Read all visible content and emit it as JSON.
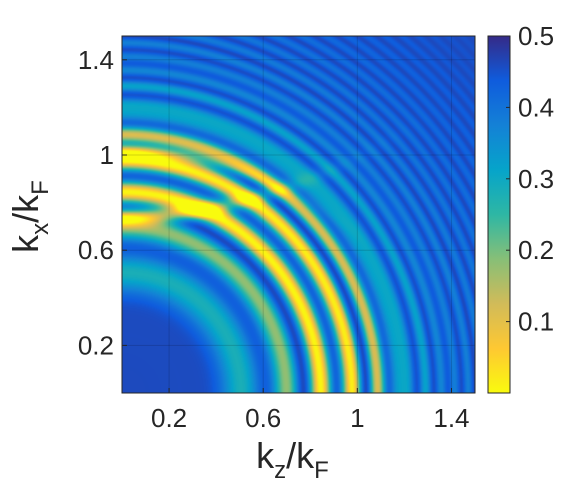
{
  "chart_data": {
    "type": "heatmap",
    "xlabel": {
      "main": "k",
      "sub1": "z",
      "slash": "/k",
      "sub2": "F"
    },
    "ylabel": {
      "main": "k",
      "sub1": "x",
      "slash": "/k",
      "sub2": "F"
    },
    "xlim": [
      0,
      1.5
    ],
    "ylim": [
      0,
      1.5
    ],
    "x_ticks": [
      {
        "value": 0.2,
        "label": "0.2"
      },
      {
        "value": 0.6,
        "label": "0.6"
      },
      {
        "value": 1.0,
        "label": "1"
      },
      {
        "value": 1.4,
        "label": "1.4"
      }
    ],
    "y_ticks": [
      {
        "value": 0.2,
        "label": "0.2"
      },
      {
        "value": 0.6,
        "label": "0.6"
      },
      {
        "value": 1.0,
        "label": "1"
      },
      {
        "value": 1.4,
        "label": "1.4"
      }
    ],
    "colorbar": {
      "range": [
        0,
        0.5
      ],
      "ticks": [
        {
          "value": 0.1,
          "label": "0.1"
        },
        {
          "value": 0.2,
          "label": "0.2"
        },
        {
          "value": 0.3,
          "label": "0.3"
        },
        {
          "value": 0.4,
          "label": "0.4"
        },
        {
          "value": 0.5,
          "label": "0.5"
        }
      ],
      "colormap": "parula",
      "colormap_stops": [
        "#352a87",
        "#0f5cdd",
        "#1481d6",
        "#06a4ca",
        "#2eb7a4",
        "#87bf77",
        "#d1bb59",
        "#fec832",
        "#f9fb0e"
      ]
    },
    "grid": true,
    "features": "concentric oscillating rings centered at origin; high-intensity (~0.5) bands between radius 0.6 and 1.2 in k_z/k_F, fringes increasing in frequency with radius; arc-shaped lobes near k_x/k_F = 0.75 and 1.0 for small k_z"
  }
}
